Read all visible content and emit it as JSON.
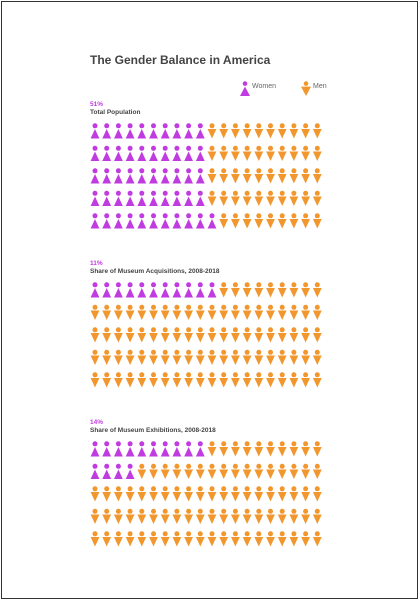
{
  "title": "The Gender Balance in America",
  "colors": {
    "women": "#c13ce0",
    "men": "#f2972e"
  },
  "legend": [
    {
      "key": "women",
      "label": "Women",
      "icon": "woman-icon"
    },
    {
      "key": "men",
      "label": "Men",
      "icon": "man-icon"
    }
  ],
  "chart_data": [
    {
      "type": "pictogram",
      "value_label": "51%",
      "label": "Total Population",
      "women_percent": 51,
      "rows": 5,
      "columns": 20,
      "women_per_row": [
        10,
        10,
        10,
        10,
        11
      ]
    },
    {
      "type": "pictogram",
      "value_label": "11%",
      "label": "Share of Museum Acquisitions, 2008-2018",
      "women_percent": 11,
      "rows": 5,
      "columns": 20,
      "women_per_row": [
        11,
        0,
        0,
        0,
        0
      ]
    },
    {
      "type": "pictogram",
      "value_label": "14%",
      "label": "Share of Museum Exhibitions, 2008-2018",
      "women_percent": 14,
      "rows": 5,
      "columns": 20,
      "women_per_row": [
        10,
        4,
        0,
        0,
        0
      ]
    }
  ]
}
